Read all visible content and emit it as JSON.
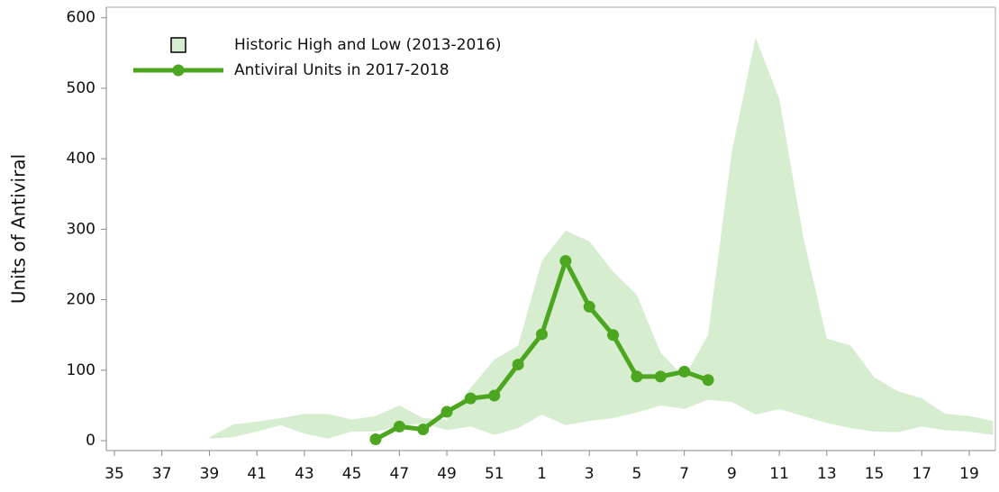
{
  "chart_data": {
    "type": "line",
    "ylabel": "Units of Antiviral",
    "categories": [
      35,
      null,
      37,
      null,
      39,
      null,
      41,
      null,
      43,
      null,
      45,
      null,
      47,
      null,
      49,
      null,
      51,
      null,
      1,
      null,
      3,
      null,
      5,
      null,
      7,
      null,
      9,
      null,
      11,
      null,
      13,
      null,
      15,
      null,
      17,
      null,
      19,
      null
    ],
    "ylim": [
      -14,
      615
    ],
    "yticks": [
      0,
      100,
      200,
      300,
      400,
      500,
      600
    ],
    "legend": "upper left",
    "series": [
      {
        "name": "Historic High and Low (2013-2016)",
        "color": "#d6edcf",
        "kind": "band",
        "values": [
          null,
          null,
          null,
          null,
          5,
          23,
          27,
          32,
          38,
          38,
          30,
          35,
          50,
          32,
          30,
          75,
          115,
          135,
          255,
          298,
          283,
          240,
          207,
          125,
          90,
          150,
          410,
          572,
          485,
          290,
          145,
          135,
          90,
          70,
          60,
          38,
          35,
          28
        ],
        "low": [
          null,
          null,
          null,
          null,
          3,
          5,
          13,
          22,
          10,
          3,
          13,
          13,
          20,
          25,
          15,
          20,
          8,
          18,
          37,
          22,
          28,
          32,
          40,
          50,
          45,
          58,
          55,
          37,
          45,
          35,
          25,
          18,
          13,
          12,
          20,
          15,
          13,
          8
        ]
      },
      {
        "name": "Antiviral Units in 2017-2018",
        "color": "#4ca620",
        "kind": "line",
        "values": [
          null,
          null,
          null,
          null,
          null,
          null,
          null,
          null,
          null,
          null,
          null,
          2,
          20,
          16,
          41,
          60,
          64,
          108,
          151,
          255,
          190,
          150,
          91,
          91,
          98,
          86,
          null,
          null,
          null,
          null,
          null,
          null,
          null,
          null,
          null,
          null,
          null,
          null
        ]
      }
    ]
  }
}
